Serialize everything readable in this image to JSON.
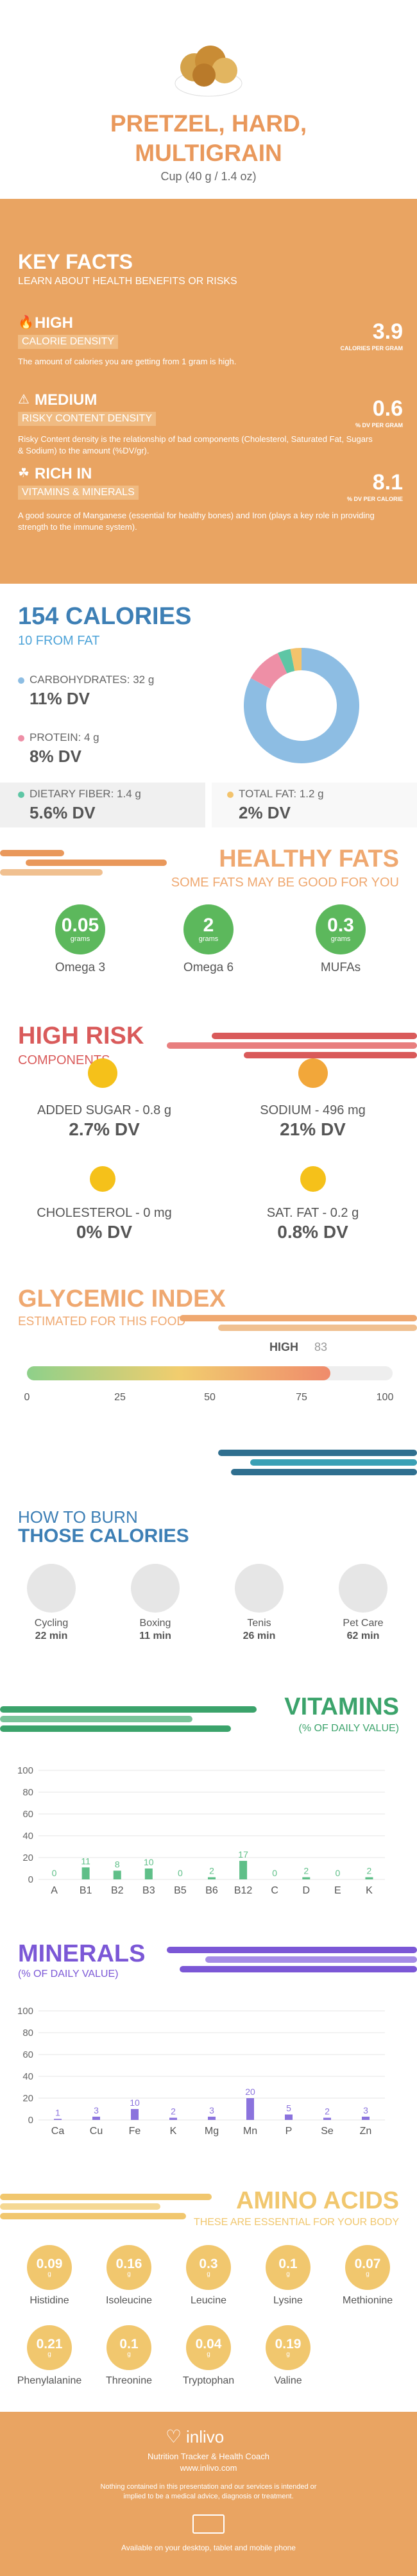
{
  "header": {
    "title": "PRETZEL, HARD, MULTIGRAIN",
    "serving": "Cup (40 g / 1.4 oz)"
  },
  "key_facts": {
    "title": "KEY FACTS",
    "subtitle": "LEARN ABOUT HEALTH BENEFITS OR RISKS",
    "items": [
      {
        "level": "HIGH",
        "name": "CALORIE DENSITY",
        "value": "3.9",
        "unit": "CALORIES PER GRAM",
        "desc": "The amount of calories you are getting from 1 gram is high."
      },
      {
        "level": "MEDIUM",
        "name": "RISKY CONTENT DENSITY",
        "value": "0.6",
        "unit": "% DV PER GRAM",
        "desc": "Risky Content density is the relationship of bad components (Cholesterol, Saturated Fat, Sugars & Sodium) to the amount (%DV/gr)."
      },
      {
        "level": "RICH IN",
        "name": "VITAMINS & MINERALS",
        "value": "8.1",
        "unit": "% DV PER CALORIE",
        "desc": "A good source of Manganese (essential for healthy bones) and Iron (plays a key role in providing strength to the immune system)."
      }
    ]
  },
  "calories": {
    "title": "154 CALORIES",
    "fat": "10 FROM FAT",
    "items": [
      {
        "label": "CARBOHYDRATES: 32 g",
        "dv": "11% DV",
        "color": "#8dbde3"
      },
      {
        "label": "PROTEIN: 4 g",
        "dv": "8% DV",
        "color": "#ee8fa6"
      },
      {
        "label": "DIETARY FIBER: 1.4 g",
        "dv": "5.6% DV",
        "color": "#5ec6a5"
      },
      {
        "label": "TOTAL FAT: 1.2 g",
        "dv": "2% DV",
        "color": "#f3c36c"
      }
    ],
    "pie": [
      {
        "name": "carbs",
        "value": 32,
        "color": "#8dbde3"
      },
      {
        "name": "protein",
        "value": 4,
        "color": "#ee8fa6"
      },
      {
        "name": "fiber",
        "value": 1.4,
        "color": "#5ec6a5"
      },
      {
        "name": "fat",
        "value": 1.2,
        "color": "#f3c36c"
      }
    ]
  },
  "healthy_fats": {
    "title": "HEALTHY FATS",
    "subtitle": "SOME FATS MAY BE GOOD FOR YOU",
    "items": [
      {
        "value": "0.05",
        "unit": "grams",
        "name": "Omega 3"
      },
      {
        "value": "2",
        "unit": "grams",
        "name": "Omega 6"
      },
      {
        "value": "0.3",
        "unit": "grams",
        "name": "MUFAs"
      }
    ]
  },
  "high_risk": {
    "title": "HIGH RISK",
    "subtitle": "COMPONENTS",
    "items": [
      {
        "label": "ADDED SUGAR - 0.8 g",
        "dv": "2.7% DV"
      },
      {
        "label": "SODIUM - 496 mg",
        "dv": "21% DV"
      },
      {
        "label": "CHOLESTEROL - 0 mg",
        "dv": "0% DV"
      },
      {
        "label": "SAT. FAT - 0.2 g",
        "dv": "0.8% DV"
      }
    ]
  },
  "glycemic": {
    "title": "GLYCEMIC INDEX",
    "subtitle": "ESTIMATED FOR THIS FOOD",
    "level": "HIGH",
    "value": 83,
    "value_text": "83",
    "ticks": [
      "0",
      "25",
      "50",
      "75",
      "100"
    ]
  },
  "burn": {
    "title1": "HOW TO BURN",
    "title2": "THOSE CALORIES",
    "items": [
      {
        "name": "Cycling",
        "time": "22 min"
      },
      {
        "name": "Boxing",
        "time": "11 min"
      },
      {
        "name": "Tenis",
        "time": "26 min"
      },
      {
        "name": "Pet Care",
        "time": "62 min"
      }
    ]
  },
  "vitamins": {
    "title": "VITAMINS",
    "subtitle": "(% OF DAILY VALUE)"
  },
  "minerals": {
    "title": "MINERALS",
    "subtitle": "(% OF DAILY VALUE)"
  },
  "chart_data": [
    {
      "type": "bar",
      "title": "VITAMINS",
      "categories": [
        "A",
        "B1",
        "B2",
        "B3",
        "B5",
        "B6",
        "B12",
        "C",
        "D",
        "E",
        "K"
      ],
      "values": [
        0,
        11,
        8,
        10,
        0,
        2,
        17,
        0,
        2,
        0,
        2
      ],
      "ylim": [
        0,
        100
      ],
      "yticks": [
        "0",
        "20",
        "40",
        "60",
        "80",
        "100"
      ],
      "color": "#5fbf88"
    },
    {
      "type": "bar",
      "title": "MINERALS",
      "categories": [
        "Ca",
        "Cu",
        "Fe",
        "K",
        "Mg",
        "Mn",
        "P",
        "Se",
        "Zn"
      ],
      "values": [
        1,
        3,
        10,
        2,
        3,
        20,
        5,
        2,
        3
      ],
      "ylim": [
        0,
        100
      ],
      "yticks": [
        "0",
        "20",
        "40",
        "60",
        "80",
        "100"
      ],
      "color": "#8b73dd"
    }
  ],
  "amino": {
    "title": "AMINO ACIDS",
    "subtitle": "THESE ARE ESSENTIAL FOR YOUR BODY",
    "items": [
      {
        "value": "0.09",
        "name": "Histidine"
      },
      {
        "value": "0.16",
        "name": "Isoleucine"
      },
      {
        "value": "0.3",
        "name": "Leucine"
      },
      {
        "value": "0.1",
        "name": "Lysine"
      },
      {
        "value": "0.07",
        "name": "Methionine"
      },
      {
        "value": "0.21",
        "name": "Phenylalanine"
      },
      {
        "value": "0.1",
        "name": "Threonine"
      },
      {
        "value": "0.04",
        "name": "Tryptophan"
      },
      {
        "value": "0.19",
        "name": "Valine"
      }
    ],
    "unit": "g"
  },
  "footer": {
    "brand": "inlivo",
    "tagline": "Nutrition Tracker & Health Coach",
    "url": "www.inlivo.com",
    "disclaimer": "Nothing contained in this presentation and our services is intended or implied to be a medical advice, diagnosis or treatment.",
    "available": "Available on your desktop, tablet and mobile phone"
  }
}
